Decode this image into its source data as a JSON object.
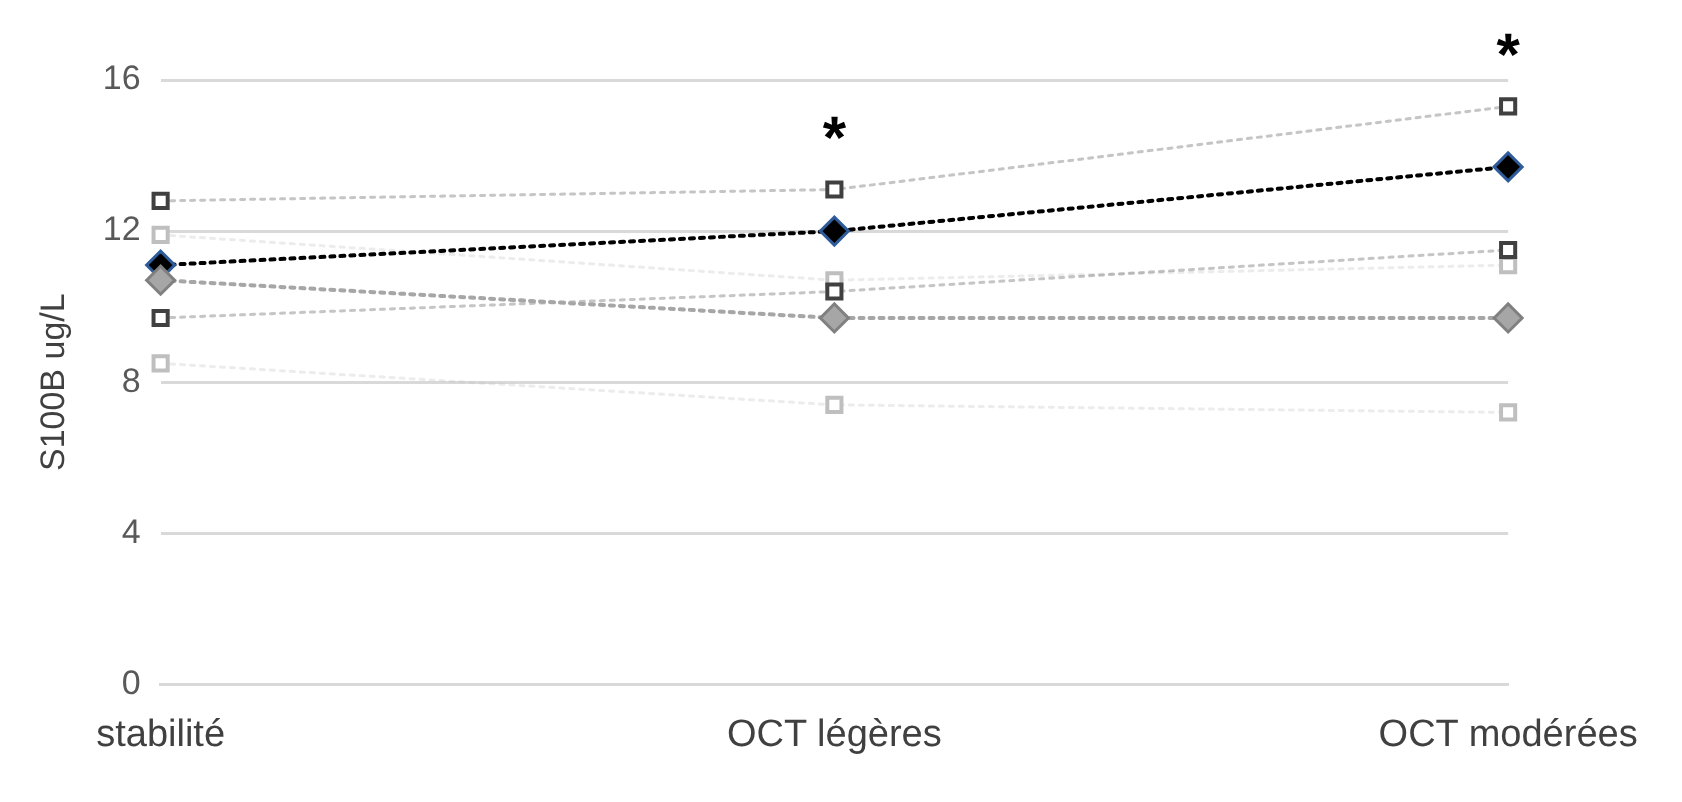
{
  "chart_data": {
    "type": "line",
    "ylabel": "S100B ug/L",
    "categories": [
      "stabilité",
      "OCT légères",
      "OCT modérées"
    ],
    "series": [
      {
        "color": "#404040",
        "marker": "square",
        "values": [
          12.8,
          13.1,
          15.3
        ]
      },
      {
        "color": "#404040",
        "marker": "square",
        "values": [
          9.7,
          10.4,
          11.5
        ]
      },
      {
        "color": "#bfbfbf",
        "marker": "square",
        "values": [
          11.9,
          10.7,
          11.1
        ]
      },
      {
        "color": "#bfbfbf",
        "marker": "square",
        "values": [
          8.5,
          7.4,
          7.2
        ]
      },
      {
        "color": "#a6a6a6",
        "marker": "diamond",
        "values": [
          10.7,
          9.7,
          9.7
        ]
      },
      {
        "color": "#000000",
        "marker": "diamond",
        "values": [
          11.1,
          12.0,
          13.7
        ]
      }
    ],
    "ylim": [
      0,
      16
    ],
    "yticks": [
      0,
      4,
      8,
      12,
      16
    ],
    "grid": "y",
    "line_style": "dotted",
    "legend": false,
    "annotations": [
      "*",
      "*"
    ]
  }
}
